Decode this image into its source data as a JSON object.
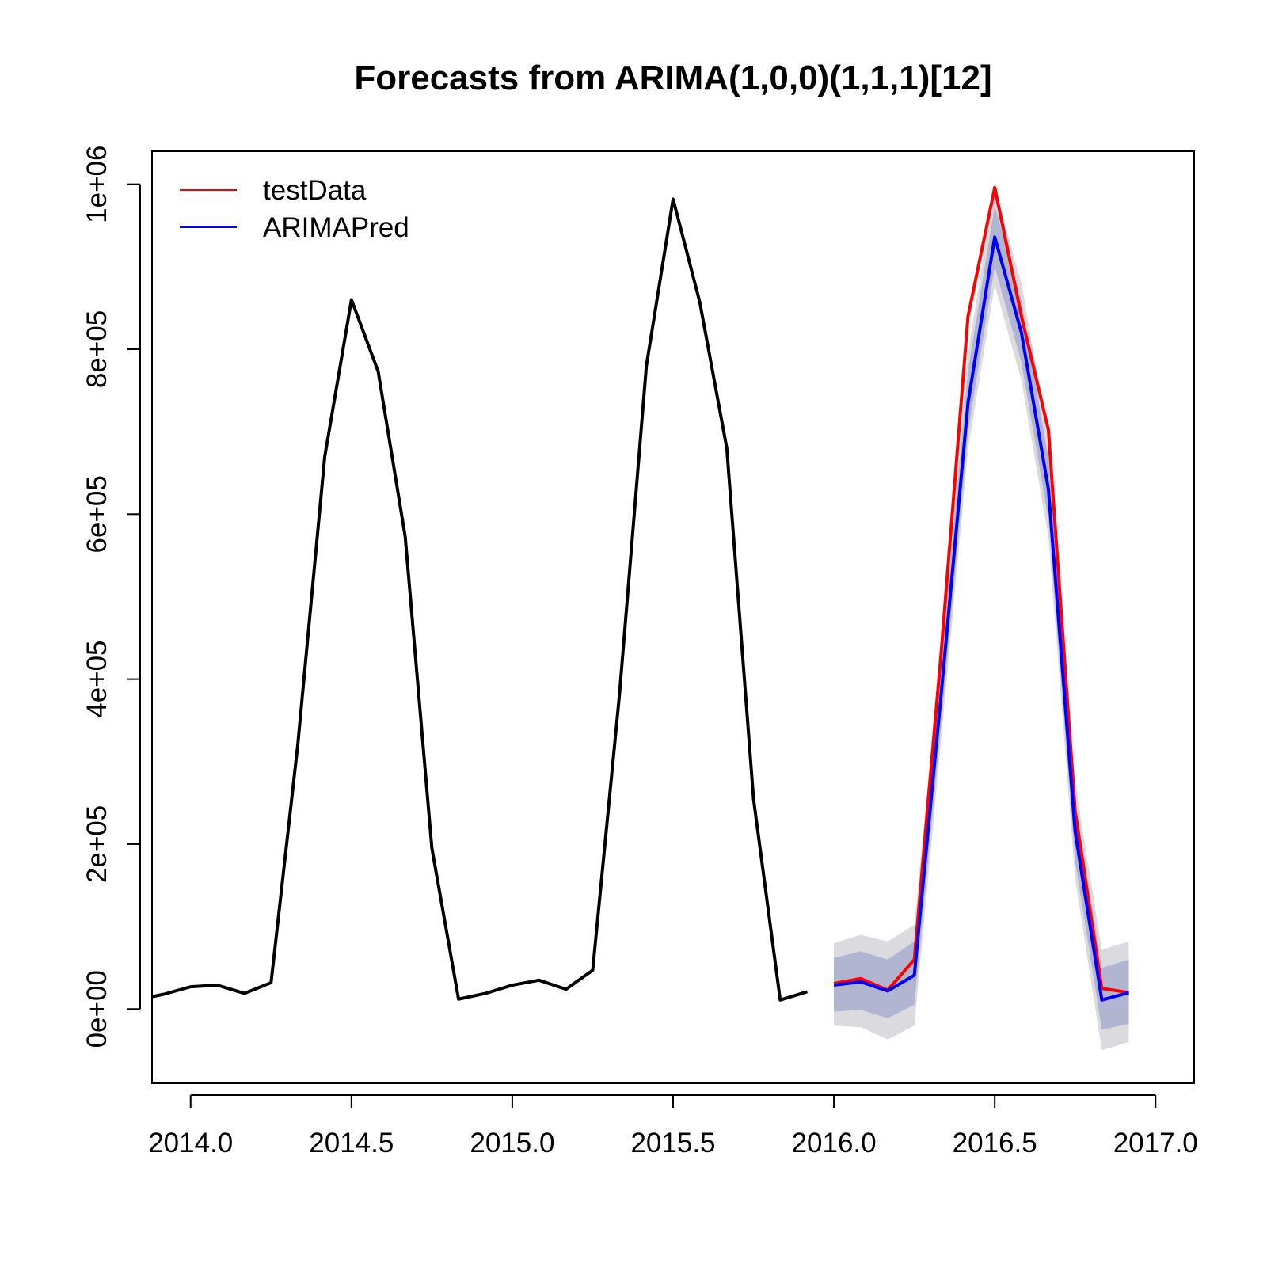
{
  "chart_data": {
    "type": "line",
    "title": "Forecasts from ARIMA(1,0,0)(1,1,1)[12]",
    "xlabel": "",
    "ylabel": "",
    "xlim": [
      2013.88,
      2017.12
    ],
    "ylim": [
      -90000,
      1040000
    ],
    "x_ticks": [
      2014.0,
      2014.5,
      2015.0,
      2015.5,
      2016.0,
      2016.5,
      2017.0
    ],
    "x_tick_labels": [
      "2014.0",
      "2014.5",
      "2015.0",
      "2015.5",
      "2016.0",
      "2016.5",
      "2017.0"
    ],
    "y_ticks": [
      0,
      200000,
      400000,
      600000,
      800000,
      1000000
    ],
    "y_tick_labels": [
      "0e+00",
      "2e+05",
      "4e+05",
      "6e+05",
      "8e+05",
      "1e+06"
    ],
    "grid": false,
    "legend_position": "top-left",
    "legend": [
      {
        "label": "testData",
        "color": "#ff0000"
      },
      {
        "label": "ARIMAPred",
        "color": "#0000ff"
      }
    ],
    "series": [
      {
        "color": "#000000",
        "x": [
          2013.88,
          2013.917,
          2014.0,
          2014.083,
          2014.167,
          2014.25,
          2014.333,
          2014.417,
          2014.5,
          2014.583,
          2014.667,
          2014.75,
          2014.833,
          2014.917,
          2015.0,
          2015.083,
          2015.167,
          2015.25,
          2015.333,
          2015.417,
          2015.5,
          2015.583,
          2015.667,
          2015.75,
          2015.833,
          2015.917
        ],
        "values": [
          15000,
          18000,
          27000,
          29000,
          19000,
          32000,
          320000,
          670000,
          860000,
          773000,
          573000,
          195000,
          12000,
          19000,
          29000,
          35000,
          24000,
          47000,
          380000,
          780000,
          982000,
          857000,
          680000,
          255000,
          11000,
          21000
        ]
      },
      {
        "name": "testData",
        "color": "#ff0000",
        "x": [
          2016.0,
          2016.083,
          2016.167,
          2016.25,
          2016.333,
          2016.417,
          2016.5,
          2016.583,
          2016.667,
          2016.75,
          2016.833,
          2016.917
        ],
        "values": [
          31000,
          37000,
          23000,
          60000,
          430000,
          840000,
          996000,
          840000,
          702000,
          240000,
          25000,
          20000
        ]
      },
      {
        "name": "ARIMAPred",
        "color": "#0000ff",
        "x": [
          2016.0,
          2016.083,
          2016.167,
          2016.25,
          2016.333,
          2016.417,
          2016.5,
          2016.583,
          2016.667,
          2016.75,
          2016.833,
          2016.917
        ],
        "values": [
          29000,
          33000,
          22000,
          41000,
          380000,
          735000,
          936000,
          820000,
          630000,
          215000,
          11000,
          20000
        ]
      }
    ],
    "intervals": {
      "x": [
        2016.0,
        2016.083,
        2016.167,
        2016.25,
        2016.333,
        2016.417,
        2016.5,
        2016.583,
        2016.667,
        2016.75,
        2016.833,
        2016.917
      ],
      "lower80": [
        -3000,
        -1000,
        -11000,
        5000,
        345000,
        700000,
        900000,
        784000,
        594000,
        180000,
        -25000,
        -18000
      ],
      "upper80": [
        62000,
        70000,
        60000,
        82000,
        418000,
        774000,
        974000,
        858000,
        668000,
        252000,
        50000,
        60000
      ],
      "lower95": [
        -20000,
        -22000,
        -37000,
        -20000,
        325000,
        678000,
        878000,
        762000,
        572000,
        158000,
        -50000,
        -40000
      ],
      "upper95": [
        80000,
        90000,
        82000,
        102000,
        438000,
        796000,
        996000,
        880000,
        690000,
        275000,
        72000,
        82000
      ],
      "color80": "#b2b5d2",
      "color95": "#dadadf"
    }
  }
}
